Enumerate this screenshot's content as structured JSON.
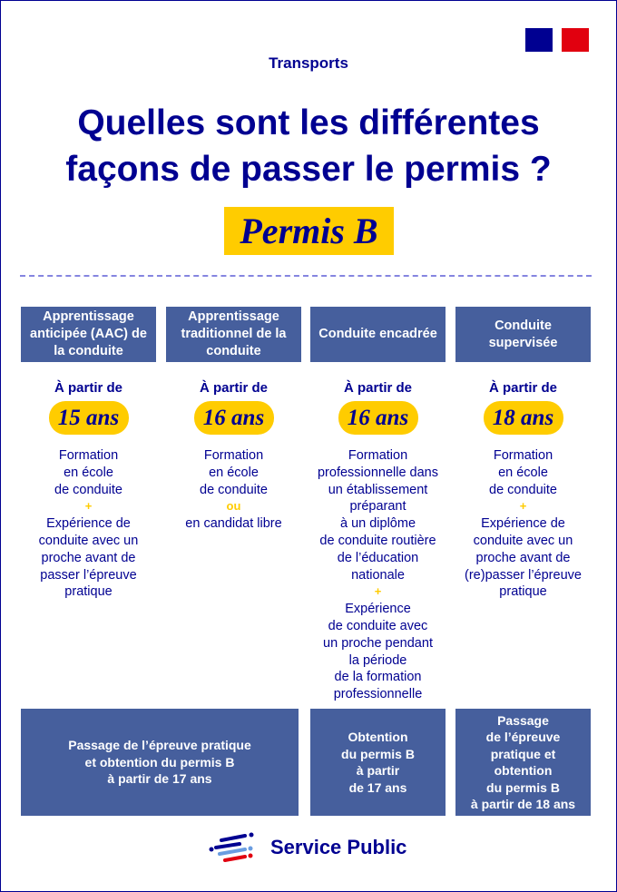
{
  "category": "Transports",
  "title": "Quelles sont les différentes façons de passer le permis ?",
  "badge": "Permis B",
  "columns": [
    {
      "header": "Apprentissage anticipée (AAC) de la conduite",
      "from": "À partir de",
      "age": "15 ans",
      "parts": [
        "Formation\nen école\nde conduite",
        "+",
        "Expérience de\nconduite avec un\nproche avant de\npasser l’épreuve\npratique"
      ]
    },
    {
      "header": "Apprentissage traditionnel de la conduite",
      "from": "À partir de",
      "age": "16 ans",
      "parts": [
        "Formation\nen école\nde conduite",
        "ou",
        "en candidat libre"
      ]
    },
    {
      "header": "Conduite encadrée",
      "from": "À partir de",
      "age": "16 ans",
      "parts": [
        "Formation\nprofessionnelle dans\nun établissement\npréparant\nà un diplôme\nde conduite routière\nde l’éducation\nnationale",
        "+",
        "Expérience\nde conduite avec\nun proche pendant\nla période\nde la formation\nprofessionnelle"
      ]
    },
    {
      "header": "Conduite supervisée",
      "from": "À partir de",
      "age": "18 ans",
      "parts": [
        "Formation\nen école\nde conduite",
        "+",
        "Expérience de\nconduite avec un\nproche avant de\n(re)passer l’épreuve\npratique"
      ]
    }
  ],
  "outcomes": [
    "Passage de l’épreuve pratique\net obtention du permis B\nà partir de 17 ans",
    "Obtention\ndu permis B\nà partir\nde 17 ans",
    "Passage\nde l’épreuve\npratique et\nobtention\ndu permis B\nà partir de 18 ans"
  ],
  "logo": {
    "text": "Service Public",
    "icon": "service-public-logo-icon"
  },
  "colors": {
    "navy": "#000091",
    "yellow": "#ffcc00",
    "box": "#465f9d"
  }
}
